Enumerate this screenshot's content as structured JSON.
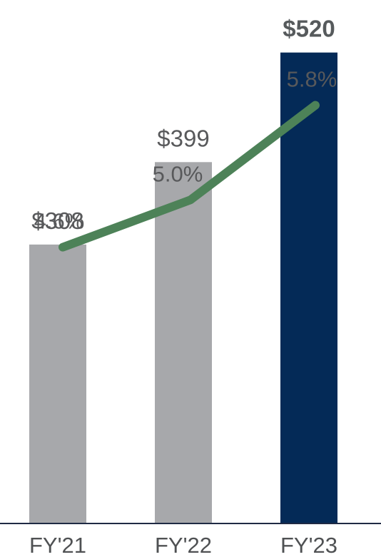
{
  "chart_data": {
    "type": "bar",
    "categories": [
      "FY'21",
      "FY'22",
      "FY'23"
    ],
    "values": [
      308,
      399,
      520
    ],
    "value_labels": [
      "$308",
      "$399",
      "$520"
    ],
    "highlight_index": 2,
    "bar_colors": [
      "#a7a8ab",
      "#a7a8ab",
      "#042a57"
    ],
    "ylim": [
      0,
      578
    ],
    "line_series": {
      "type": "line",
      "values": [
        4.6,
        5.0,
        5.8
      ],
      "labels": [
        "4.6%",
        "5.0%",
        "5.8%"
      ],
      "ylim": [
        2.0,
        6.4
      ],
      "color": "#4d8258"
    },
    "axis_color": "#1f2a44",
    "title": "",
    "xlabel": "",
    "ylabel": "",
    "grid": false,
    "legend": "none"
  }
}
